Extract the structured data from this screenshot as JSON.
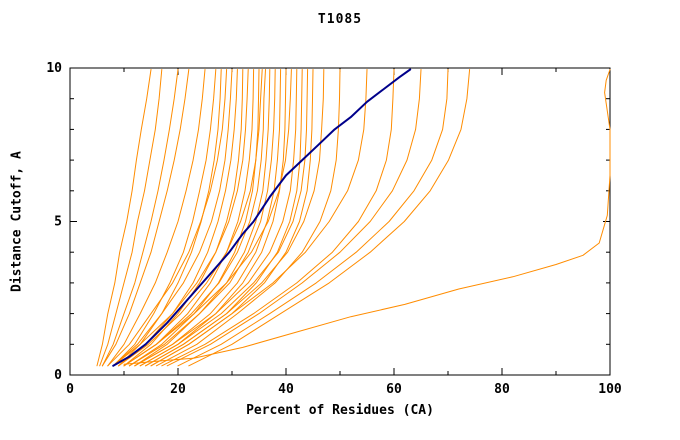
{
  "chart_data": {
    "type": "line",
    "title": "T1085",
    "xlabel": "Percent of Residues (CA)",
    "ylabel": "Distance Cutoff, A",
    "xlim": [
      0,
      100
    ],
    "ylim": [
      0,
      10
    ],
    "x_ticks": [
      0,
      20,
      40,
      60,
      80,
      100
    ],
    "x_minor_ticks": [
      10,
      30,
      50,
      70,
      90
    ],
    "y_ticks": [
      0,
      5,
      10
    ],
    "y_minor_ticks": [
      1,
      2,
      3,
      4,
      6,
      7,
      8,
      9
    ],
    "grid": false,
    "legend": false,
    "colors": {
      "axis": "#000000",
      "background": "#ffffff",
      "model": "#ff8c00",
      "highlight": "#00008b"
    },
    "y_levels": [
      0.3,
      1,
      2,
      3,
      4,
      5,
      6,
      7,
      8,
      9,
      9.95
    ],
    "series": [
      {
        "color": "#ff8c00",
        "width": 1,
        "x": [
          5,
          6,
          7,
          8.3,
          9.2,
          10.5,
          11.5,
          12.3,
          13.2,
          14.2,
          15
        ]
      },
      {
        "color": "#ff8c00",
        "width": 1,
        "x": [
          5.5,
          7,
          8.5,
          10,
          11.5,
          12.5,
          13.8,
          14.8,
          15.8,
          16.5,
          17
        ]
      },
      {
        "color": "#ff8c00",
        "width": 1,
        "x": [
          6,
          8,
          10,
          12,
          13.5,
          15,
          16.3,
          17.4,
          18.4,
          19.3,
          20
        ]
      },
      {
        "color": "#ff8c00",
        "width": 1,
        "x": [
          6,
          8.5,
          11,
          13,
          15,
          16.5,
          18,
          19.3,
          20.4,
          21.3,
          22
        ]
      },
      {
        "color": "#ff8c00",
        "width": 1,
        "x": [
          7,
          10,
          13,
          15.8,
          18,
          20,
          21.5,
          22.8,
          23.8,
          24.5,
          25
        ]
      },
      {
        "color": "#ff8c00",
        "width": 1,
        "x": [
          8,
          12,
          15.5,
          18.5,
          21,
          22.7,
          24,
          25.2,
          26,
          26.6,
          27
        ]
      },
      {
        "color": "#ff8c00",
        "width": 1,
        "x": [
          9,
          13,
          17,
          20,
          22.5,
          24.3,
          25.7,
          26.7,
          27.4,
          27.8,
          28
        ]
      },
      {
        "color": "#ff8c00",
        "width": 1,
        "x": [
          7,
          11,
          15,
          19,
          22,
          24.2,
          26,
          27.3,
          28.2,
          28.7,
          29
        ]
      },
      {
        "color": "#ff8c00",
        "width": 1,
        "x": [
          8,
          12.5,
          17,
          21,
          24,
          26.2,
          27.7,
          28.7,
          29.3,
          29.7,
          30
        ]
      },
      {
        "color": "#ff8c00",
        "width": 1,
        "x": [
          9,
          14,
          19,
          22.8,
          25.5,
          27.4,
          28.8,
          29.8,
          30.4,
          30.8,
          31
        ]
      },
      {
        "color": "#ff8c00",
        "width": 1,
        "x": [
          10,
          15,
          20,
          24,
          27,
          29,
          30.4,
          31.2,
          31.7,
          31.9,
          32
        ]
      },
      {
        "color": "#ff8c00",
        "width": 1,
        "x": [
          8,
          13,
          19,
          23.5,
          27,
          29.4,
          31,
          32,
          32.5,
          32.8,
          33
        ]
      },
      {
        "color": "#ff8c00",
        "width": 1,
        "x": [
          10,
          16,
          21.8,
          26,
          29,
          31.1,
          32.4,
          33.2,
          33.7,
          33.9,
          34
        ]
      },
      {
        "color": "#ff8c00",
        "width": 1,
        "x": [
          11,
          17,
          23,
          27.5,
          30.5,
          32.5,
          33.8,
          34.4,
          34.8,
          34.9,
          35
        ]
      },
      {
        "color": "#ff8c00",
        "width": 1,
        "x": [
          9,
          14.5,
          20.5,
          25.3,
          29,
          31.6,
          33.4,
          34.4,
          35,
          35.3,
          35.6
        ]
      },
      {
        "color": "#ff8c00",
        "width": 1,
        "x": [
          10,
          16,
          22.5,
          27.6,
          31,
          33.3,
          34.7,
          35.4,
          35.8,
          35.9,
          36.2
        ]
      },
      {
        "color": "#ff8c00",
        "width": 1,
        "x": [
          12,
          18,
          24,
          29,
          32.3,
          34.4,
          35.7,
          36.3,
          36.7,
          36.9,
          37
        ]
      },
      {
        "color": "#ff8c00",
        "width": 1,
        "x": [
          11,
          17.5,
          24,
          29.6,
          33,
          35.3,
          36.6,
          37.3,
          37.7,
          37.9,
          38
        ]
      },
      {
        "color": "#ff8c00",
        "width": 1,
        "x": [
          12,
          19,
          26,
          31,
          34.4,
          36.5,
          37.8,
          38.4,
          38.8,
          38.9,
          39
        ]
      },
      {
        "color": "#ff8c00",
        "width": 1,
        "x": [
          13,
          20,
          27,
          32,
          35.5,
          37.6,
          38.8,
          39.5,
          39.8,
          39.9,
          40
        ]
      },
      {
        "color": "#ff8c00",
        "width": 1,
        "x": [
          10,
          16,
          23,
          29,
          33.6,
          36.7,
          38.7,
          39.9,
          40.5,
          40.8,
          41
        ]
      },
      {
        "color": "#ff8c00",
        "width": 1,
        "x": [
          12,
          19,
          27,
          33,
          37,
          39.4,
          40.8,
          41.4,
          41.8,
          41.9,
          42
        ]
      },
      {
        "color": "#ff8c00",
        "width": 1,
        "x": [
          14,
          21,
          29,
          34.5,
          38.4,
          40.7,
          42,
          42.6,
          42.8,
          42.9,
          43
        ]
      },
      {
        "color": "#ff8c00",
        "width": 1,
        "x": [
          13,
          20,
          28,
          34,
          38.6,
          41.3,
          42.8,
          43.5,
          43.8,
          43.9,
          44
        ]
      },
      {
        "color": "#ff8c00",
        "width": 1,
        "x": [
          15,
          22,
          30,
          36,
          40,
          42.5,
          43.9,
          44.5,
          44.8,
          44.9,
          45
        ]
      },
      {
        "color": "#ff8c00",
        "width": 1,
        "x": [
          14,
          21,
          29,
          35.5,
          40.3,
          43.3,
          45.2,
          46.2,
          46.6,
          46.9,
          47
        ]
      },
      {
        "color": "#ff8c00",
        "width": 1,
        "x": [
          16,
          23.5,
          31,
          38,
          43,
          46.3,
          48.3,
          49.3,
          49.7,
          49.9,
          50
        ]
      },
      {
        "color": "#ff8c00",
        "width": 1,
        "x": [
          15,
          22,
          30,
          37.6,
          43.6,
          48,
          51.4,
          53.4,
          54.4,
          54.8,
          55
        ]
      },
      {
        "color": "#ff8c00",
        "width": 1,
        "x": [
          17,
          25,
          34,
          42,
          48.6,
          53.4,
          56.7,
          58.6,
          59.5,
          59.8,
          60
        ]
      },
      {
        "color": "#ff8c00",
        "width": 1,
        "x": [
          18,
          26,
          35,
          43,
          50,
          55.6,
          59.7,
          62.4,
          64,
          64.7,
          65
        ]
      },
      {
        "color": "#ff8c00",
        "width": 1,
        "x": [
          20,
          28,
          37,
          45.6,
          53,
          59.1,
          63.7,
          67,
          69,
          69.8,
          70
        ]
      },
      {
        "color": "#ff8c00",
        "width": 1,
        "x": [
          22,
          30,
          39,
          48,
          55.6,
          61.9,
          66.7,
          70.1,
          72.4,
          73.5,
          74
        ]
      },
      {
        "color": "#ff8c00",
        "width": 1,
        "points": [
          [
            10,
            0.35
          ],
          [
            16,
            0.45
          ],
          [
            23,
            0.55
          ],
          [
            32,
            0.9
          ],
          [
            42,
            1.4
          ],
          [
            52,
            1.9
          ],
          [
            62,
            2.3
          ],
          [
            72,
            2.8
          ],
          [
            82,
            3.2
          ],
          [
            90,
            3.6
          ],
          [
            95,
            3.9
          ],
          [
            98,
            4.3
          ],
          [
            99.5,
            5.2
          ],
          [
            100,
            6.5
          ],
          [
            100,
            8
          ],
          [
            99,
            9.2
          ],
          [
            99.3,
            9.6
          ],
          [
            100,
            9.95
          ]
        ]
      },
      {
        "color": "#00008b",
        "width": 2,
        "points": [
          [
            8,
            0.3
          ],
          [
            11,
            0.6
          ],
          [
            14,
            1
          ],
          [
            18,
            1.7
          ],
          [
            21,
            2.3
          ],
          [
            24,
            2.9
          ],
          [
            27,
            3.5
          ],
          [
            29.5,
            4
          ],
          [
            32,
            4.6
          ],
          [
            34,
            5
          ],
          [
            37,
            5.8
          ],
          [
            40,
            6.5
          ],
          [
            43,
            7
          ],
          [
            46,
            7.5
          ],
          [
            49,
            8
          ],
          [
            52,
            8.4
          ],
          [
            55,
            8.9
          ],
          [
            58,
            9.3
          ],
          [
            61,
            9.7
          ],
          [
            63,
            9.95
          ]
        ]
      }
    ]
  }
}
